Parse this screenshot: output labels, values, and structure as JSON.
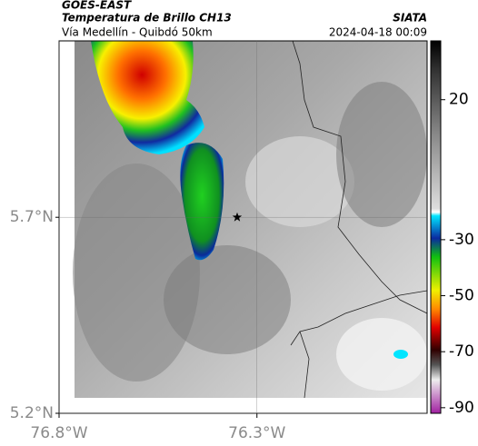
{
  "chart_data": {
    "type": "map",
    "title": "GOES-EAST",
    "subtitle": "Temperatura de Brillo CH13",
    "source": "SIATA",
    "region": "Vía Medellín - Quibdó 50km",
    "timestamp": "2024-04-18 00:09",
    "xlim": [
      -76.8,
      -75.87
    ],
    "ylim": [
      5.2,
      6.15
    ],
    "xticks": [
      {
        "value": -76.8,
        "label": "76.8°W"
      },
      {
        "value": -76.3,
        "label": "76.3°W"
      }
    ],
    "yticks": [
      {
        "value": 5.2,
        "label": "5.2°N"
      },
      {
        "value": 5.7,
        "label": "5.7°N"
      }
    ],
    "grid": true,
    "marker": {
      "lon": -76.35,
      "lat": 5.7
    },
    "colorbar": {
      "lim": [
        -92,
        41
      ],
      "ticks": [
        20,
        -30,
        -50,
        -70,
        -90
      ]
    }
  }
}
